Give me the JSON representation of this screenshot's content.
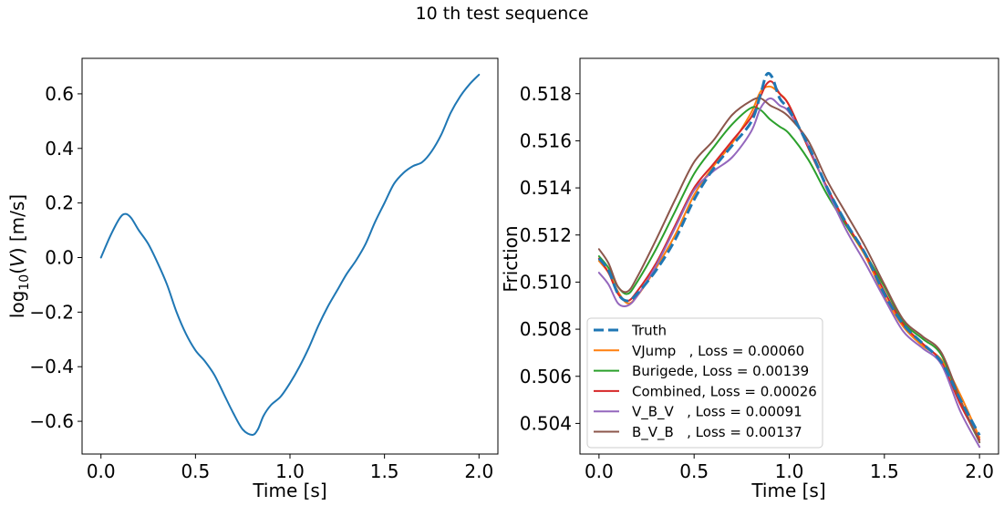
{
  "figure": {
    "title": "10 th test sequence"
  },
  "chart_data": [
    {
      "type": "line",
      "xlabel": "Time [s]",
      "ylabel_parts": {
        "pre": "log",
        "sub": "10",
        "mid": "(",
        "var": "V",
        "post": ") [m/s]"
      },
      "xlim": [
        -0.1,
        2.1
      ],
      "ylim": [
        -0.72,
        0.73
      ],
      "xticks": [
        0.0,
        0.5,
        1.0,
        1.5,
        2.0
      ],
      "xtick_labels": [
        "0.0",
        "0.5",
        "1.0",
        "1.5",
        "2.0"
      ],
      "yticks": [
        -0.6,
        -0.4,
        -0.2,
        0.0,
        0.2,
        0.4,
        0.6
      ],
      "ytick_labels": [
        "−0.6",
        "−0.4",
        "−0.2",
        "0.0",
        "0.2",
        "0.4",
        "0.6"
      ],
      "grid": false,
      "series": [
        {
          "color": "#1f77b4",
          "x": [
            0.0,
            0.05,
            0.1,
            0.13,
            0.16,
            0.2,
            0.25,
            0.3,
            0.35,
            0.4,
            0.45,
            0.5,
            0.55,
            0.6,
            0.65,
            0.7,
            0.75,
            0.8,
            0.83,
            0.86,
            0.9,
            0.95,
            1.0,
            1.05,
            1.1,
            1.15,
            1.2,
            1.25,
            1.3,
            1.35,
            1.4,
            1.45,
            1.5,
            1.55,
            1.6,
            1.65,
            1.7,
            1.75,
            1.8,
            1.85,
            1.9,
            1.95,
            2.0
          ],
          "y": [
            0.0,
            0.08,
            0.145,
            0.16,
            0.145,
            0.1,
            0.05,
            -0.02,
            -0.1,
            -0.2,
            -0.28,
            -0.34,
            -0.38,
            -0.43,
            -0.5,
            -0.57,
            -0.63,
            -0.65,
            -0.63,
            -0.58,
            -0.54,
            -0.51,
            -0.46,
            -0.4,
            -0.33,
            -0.25,
            -0.18,
            -0.12,
            -0.06,
            -0.01,
            0.05,
            0.13,
            0.2,
            0.27,
            0.31,
            0.335,
            0.35,
            0.39,
            0.45,
            0.53,
            0.59,
            0.635,
            0.67
          ]
        }
      ]
    },
    {
      "type": "line",
      "xlabel": "Time [s]",
      "ylabel": "Friction",
      "xlim": [
        -0.1,
        2.1
      ],
      "ylim": [
        0.5027,
        0.5195
      ],
      "xticks": [
        0.0,
        0.5,
        1.0,
        1.5,
        2.0
      ],
      "xtick_labels": [
        "0.0",
        "0.5",
        "1.0",
        "1.5",
        "2.0"
      ],
      "yticks": [
        0.504,
        0.506,
        0.508,
        0.51,
        0.512,
        0.514,
        0.516,
        0.518
      ],
      "ytick_labels": [
        "0.504",
        "0.506",
        "0.508",
        "0.510",
        "0.512",
        "0.514",
        "0.516",
        "0.518"
      ],
      "grid": false,
      "legend_position": "lower-left",
      "series": [
        {
          "name": "Truth",
          "color": "#1f77b4",
          "dashed": true,
          "x": [
            0.0,
            0.05,
            0.1,
            0.15,
            0.2,
            0.3,
            0.4,
            0.5,
            0.6,
            0.7,
            0.8,
            0.85,
            0.88,
            0.91,
            0.95,
            1.0,
            1.1,
            1.2,
            1.3,
            1.4,
            1.5,
            1.6,
            1.7,
            1.8,
            1.9,
            2.0
          ],
          "y": [
            0.511,
            0.5105,
            0.5095,
            0.5092,
            0.5095,
            0.5105,
            0.5118,
            0.5135,
            0.5148,
            0.5158,
            0.5168,
            0.518,
            0.5188,
            0.5187,
            0.5178,
            0.5173,
            0.5158,
            0.514,
            0.5125,
            0.5112,
            0.5095,
            0.5082,
            0.5074,
            0.5066,
            0.505,
            0.5035
          ]
        },
        {
          "name": "VJump",
          "loss_label": "VJump   , Loss = 0.00060",
          "color": "#ff7f0e",
          "dashed": false,
          "x": [
            0.0,
            0.05,
            0.1,
            0.15,
            0.2,
            0.3,
            0.4,
            0.5,
            0.6,
            0.7,
            0.8,
            0.85,
            0.9,
            0.95,
            1.0,
            1.1,
            1.2,
            1.3,
            1.4,
            1.5,
            1.6,
            1.7,
            1.8,
            1.9,
            2.0
          ],
          "y": [
            0.5109,
            0.5104,
            0.5096,
            0.5091,
            0.5094,
            0.5106,
            0.512,
            0.5137,
            0.5149,
            0.5159,
            0.5172,
            0.5181,
            0.5183,
            0.518,
            0.5175,
            0.5157,
            0.514,
            0.5124,
            0.5111,
            0.5094,
            0.5081,
            0.5073,
            0.5067,
            0.5052,
            0.5034
          ]
        },
        {
          "name": "Burigede",
          "loss_label": "Burigede, Loss = 0.00139",
          "color": "#2ca02c",
          "dashed": false,
          "x": [
            0.0,
            0.05,
            0.1,
            0.15,
            0.2,
            0.3,
            0.4,
            0.5,
            0.6,
            0.7,
            0.8,
            0.85,
            0.9,
            0.95,
            1.0,
            1.1,
            1.2,
            1.3,
            1.4,
            1.5,
            1.6,
            1.7,
            1.8,
            1.9,
            2.0
          ],
          "y": [
            0.5111,
            0.5106,
            0.5098,
            0.5095,
            0.51,
            0.5114,
            0.513,
            0.5146,
            0.5157,
            0.5167,
            0.5174,
            0.5173,
            0.5169,
            0.5166,
            0.5163,
            0.5152,
            0.5137,
            0.5124,
            0.5112,
            0.5098,
            0.5083,
            0.5076,
            0.5069,
            0.5049,
            0.5032
          ]
        },
        {
          "name": "Combined",
          "loss_label": "Combined, Loss = 0.00026",
          "color": "#d62728",
          "dashed": false,
          "x": [
            0.0,
            0.05,
            0.1,
            0.15,
            0.2,
            0.3,
            0.4,
            0.5,
            0.6,
            0.7,
            0.8,
            0.85,
            0.88,
            0.91,
            0.95,
            1.0,
            1.1,
            1.2,
            1.3,
            1.4,
            1.5,
            1.6,
            1.7,
            1.8,
            1.9,
            2.0
          ],
          "y": [
            0.511,
            0.5104,
            0.5095,
            0.5092,
            0.5096,
            0.5108,
            0.5124,
            0.514,
            0.515,
            0.516,
            0.517,
            0.5179,
            0.5184,
            0.5185,
            0.518,
            0.5175,
            0.5157,
            0.514,
            0.5125,
            0.5112,
            0.5096,
            0.5082,
            0.5074,
            0.5066,
            0.5048,
            0.5033
          ]
        },
        {
          "name": "V_B_V",
          "loss_label": "V_B_V   , Loss = 0.00091",
          "color": "#9467bd",
          "dashed": false,
          "x": [
            0.0,
            0.05,
            0.1,
            0.15,
            0.2,
            0.3,
            0.4,
            0.5,
            0.6,
            0.7,
            0.8,
            0.85,
            0.9,
            0.95,
            1.0,
            1.1,
            1.2,
            1.3,
            1.4,
            1.5,
            1.6,
            1.7,
            1.8,
            1.9,
            2.0
          ],
          "y": [
            0.5104,
            0.5099,
            0.5091,
            0.509,
            0.5094,
            0.5107,
            0.5123,
            0.5139,
            0.5147,
            0.5153,
            0.5164,
            0.5174,
            0.5178,
            0.5175,
            0.5172,
            0.5158,
            0.5139,
            0.5122,
            0.5108,
            0.5093,
            0.5079,
            0.5072,
            0.5065,
            0.5045,
            0.503
          ]
        },
        {
          "name": "B_V_B",
          "loss_label": "B_V_B   , Loss = 0.00137",
          "color": "#8c564b",
          "dashed": false,
          "x": [
            0.0,
            0.05,
            0.1,
            0.15,
            0.2,
            0.3,
            0.4,
            0.5,
            0.6,
            0.7,
            0.8,
            0.85,
            0.9,
            0.95,
            1.0,
            1.1,
            1.2,
            1.3,
            1.4,
            1.5,
            1.6,
            1.7,
            1.8,
            1.9,
            2.0
          ],
          "y": [
            0.5114,
            0.5108,
            0.5098,
            0.5096,
            0.5102,
            0.5118,
            0.5135,
            0.5151,
            0.516,
            0.5171,
            0.5177,
            0.5178,
            0.5175,
            0.5173,
            0.517,
            0.516,
            0.5143,
            0.5129,
            0.5115,
            0.5099,
            0.5084,
            0.5077,
            0.507,
            0.505,
            0.5032
          ]
        }
      ],
      "legend": {
        "entries": [
          "Truth",
          "VJump   , Loss = 0.00060",
          "Burigede, Loss = 0.00139",
          "Combined, Loss = 0.00026",
          "V_B_V   , Loss = 0.00091",
          "B_V_B   , Loss = 0.00137"
        ]
      }
    }
  ]
}
